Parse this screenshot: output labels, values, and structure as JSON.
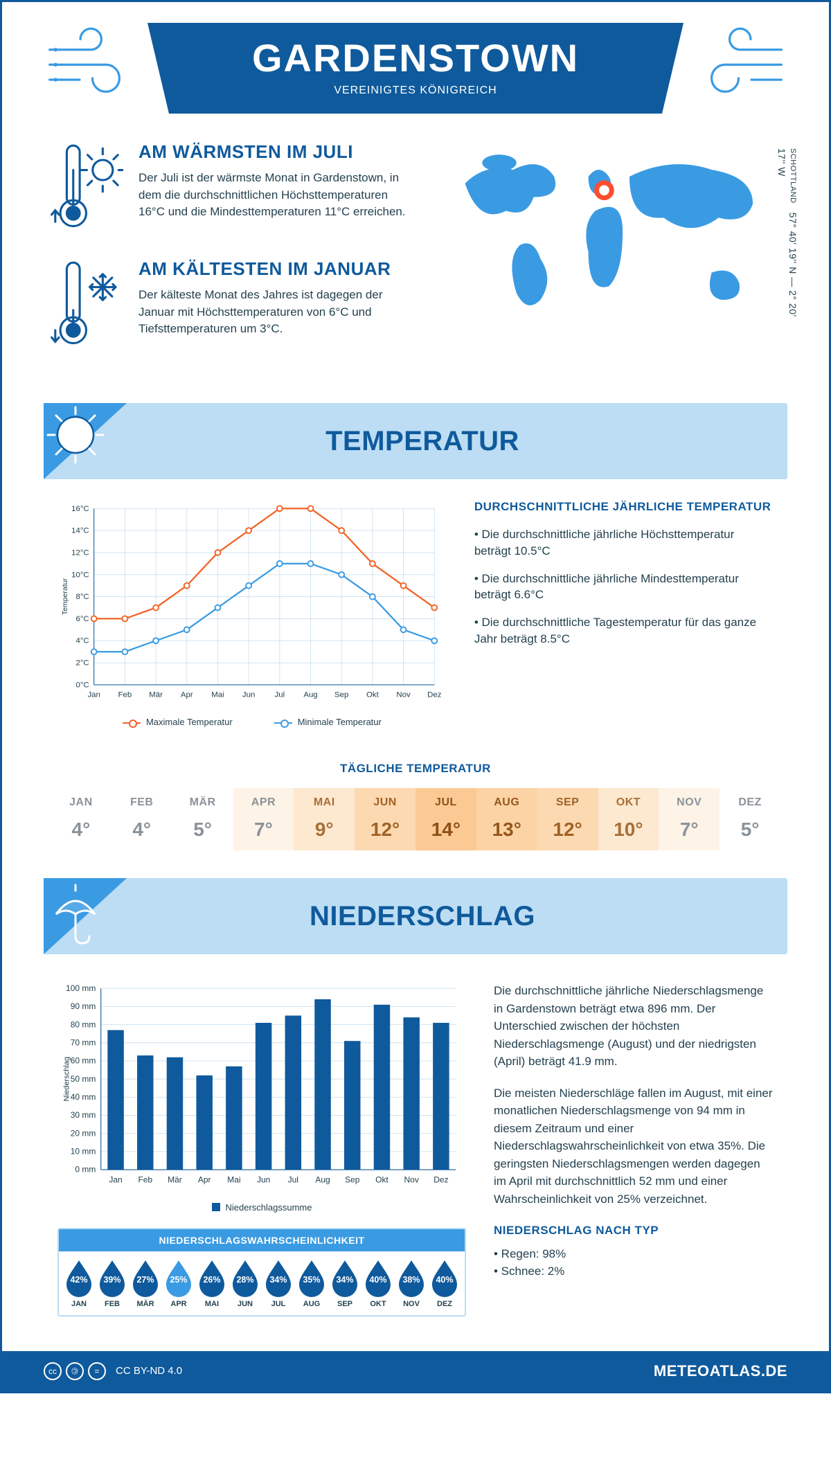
{
  "header": {
    "title": "GARDENSTOWN",
    "subtitle": "VEREINIGTES KÖNIGREICH"
  },
  "facts": {
    "warm": {
      "title": "AM WÄRMSTEN IM JULI",
      "text": "Der Juli ist der wärmste Monat in Gardenstown, in dem die durchschnittlichen Höchsttemperaturen 16°C und die Mindesttemperaturen 11°C erreichen."
    },
    "cold": {
      "title": "AM KÄLTESTEN IM JANUAR",
      "text": "Der kälteste Monat des Jahres ist dagegen der Januar mit Höchsttemperaturen von 6°C und Tiefsttemperaturen um 3°C."
    }
  },
  "coords": {
    "line1": "57° 40' 19'' N — 2° 20' 17'' W",
    "country": "SCHOTTLAND"
  },
  "colors": {
    "primary": "#0f5a9c",
    "band": "#bcddf3",
    "accent_blue": "#3a9be3",
    "series_max": "#f26326",
    "series_min": "#3a9be3",
    "grid": "#cde0ef",
    "text": "#24414f",
    "marker": "#ff4d2e"
  },
  "months": [
    "Jan",
    "Feb",
    "Mär",
    "Apr",
    "Mai",
    "Jun",
    "Jul",
    "Aug",
    "Sep",
    "Okt",
    "Nov",
    "Dez"
  ],
  "months_upper": [
    "JAN",
    "FEB",
    "MÄR",
    "APR",
    "MAI",
    "JUN",
    "JUL",
    "AUG",
    "SEP",
    "OKT",
    "NOV",
    "DEZ"
  ],
  "temperature": {
    "section_title": "TEMPERATUR",
    "yaxis_label": "Temperatur",
    "ylim": [
      0,
      16
    ],
    "ytick_step": 2,
    "ytick_suffix": "°C",
    "series": {
      "max": {
        "label": "Maximale Temperatur",
        "color": "#f26326",
        "values": [
          6,
          6,
          7,
          9,
          12,
          14,
          16,
          16,
          14,
          11,
          9,
          7
        ]
      },
      "min": {
        "label": "Minimale Temperatur",
        "color": "#3a9be3",
        "values": [
          3,
          3,
          4,
          5,
          7,
          9,
          11,
          11,
          10,
          8,
          5,
          4
        ]
      }
    },
    "summary_title": "DURCHSCHNITTLICHE JÄHRLICHE TEMPERATUR",
    "summary_items": [
      "Die durchschnittliche jährliche Höchsttemperatur beträgt 10.5°C",
      "Die durchschnittliche jährliche Mindesttemperatur beträgt 6.6°C",
      "Die durchschnittliche Tagestemperatur für das ganze Jahr beträgt 8.5°C"
    ],
    "daily_title": "TÄGLICHE TEMPERATUR",
    "daily_values": [
      4,
      4,
      5,
      7,
      9,
      12,
      14,
      13,
      12,
      10,
      7,
      5
    ],
    "daily_bg_colors": [
      "#ffffff",
      "#ffffff",
      "#ffffff",
      "#fef3e7",
      "#fde8d0",
      "#fcd9b1",
      "#fbca94",
      "#fcd3a4",
      "#fcd9b1",
      "#fde8d0",
      "#fef3e7",
      "#ffffff"
    ],
    "daily_text_colors": [
      "#8a9299",
      "#8a9299",
      "#8a9299",
      "#8a9299",
      "#a77036",
      "#a06226",
      "#8e4f16",
      "#95571e",
      "#a06226",
      "#a77036",
      "#8a9299",
      "#8a9299"
    ]
  },
  "precipitation": {
    "section_title": "NIEDERSCHLAG",
    "yaxis_label": "Niederschlag",
    "ylim": [
      0,
      100
    ],
    "ytick_step": 10,
    "ytick_suffix": " mm",
    "bar_color": "#0f5a9c",
    "values": [
      77,
      63,
      62,
      52,
      57,
      81,
      85,
      94,
      71,
      91,
      84,
      81
    ],
    "bar_width": 0.55,
    "legend_label": "Niederschlagssumme",
    "text_p1": "Die durchschnittliche jährliche Niederschlagsmenge in Gardenstown beträgt etwa 896 mm. Der Unterschied zwischen der höchsten Niederschlagsmenge (August) und der niedrigsten (April) beträgt 41.9 mm.",
    "text_p2": "Die meisten Niederschläge fallen im August, mit einer monatlichen Niederschlagsmenge von 94 mm in diesem Zeitraum und einer Niederschlagswahrscheinlichkeit von etwa 35%. Die geringsten Niederschlagsmengen werden dagegen im April mit durchschnittlich 52 mm und einer Wahrscheinlichkeit von 25% verzeichnet.",
    "type_title": "NIEDERSCHLAG NACH TYP",
    "type_items": [
      "Regen: 98%",
      "Schnee: 2%"
    ],
    "prob_title": "NIEDERSCHLAGSWAHRSCHEINLICHKEIT",
    "prob_values": [
      42,
      39,
      27,
      25,
      26,
      28,
      34,
      35,
      34,
      40,
      38,
      40
    ],
    "prob_min_idx": 3,
    "drop_dark": "#0f5a9c",
    "drop_light": "#3a9be3"
  },
  "footer": {
    "license": "CC BY-ND 4.0",
    "site": "METEOATLAS.DE"
  }
}
